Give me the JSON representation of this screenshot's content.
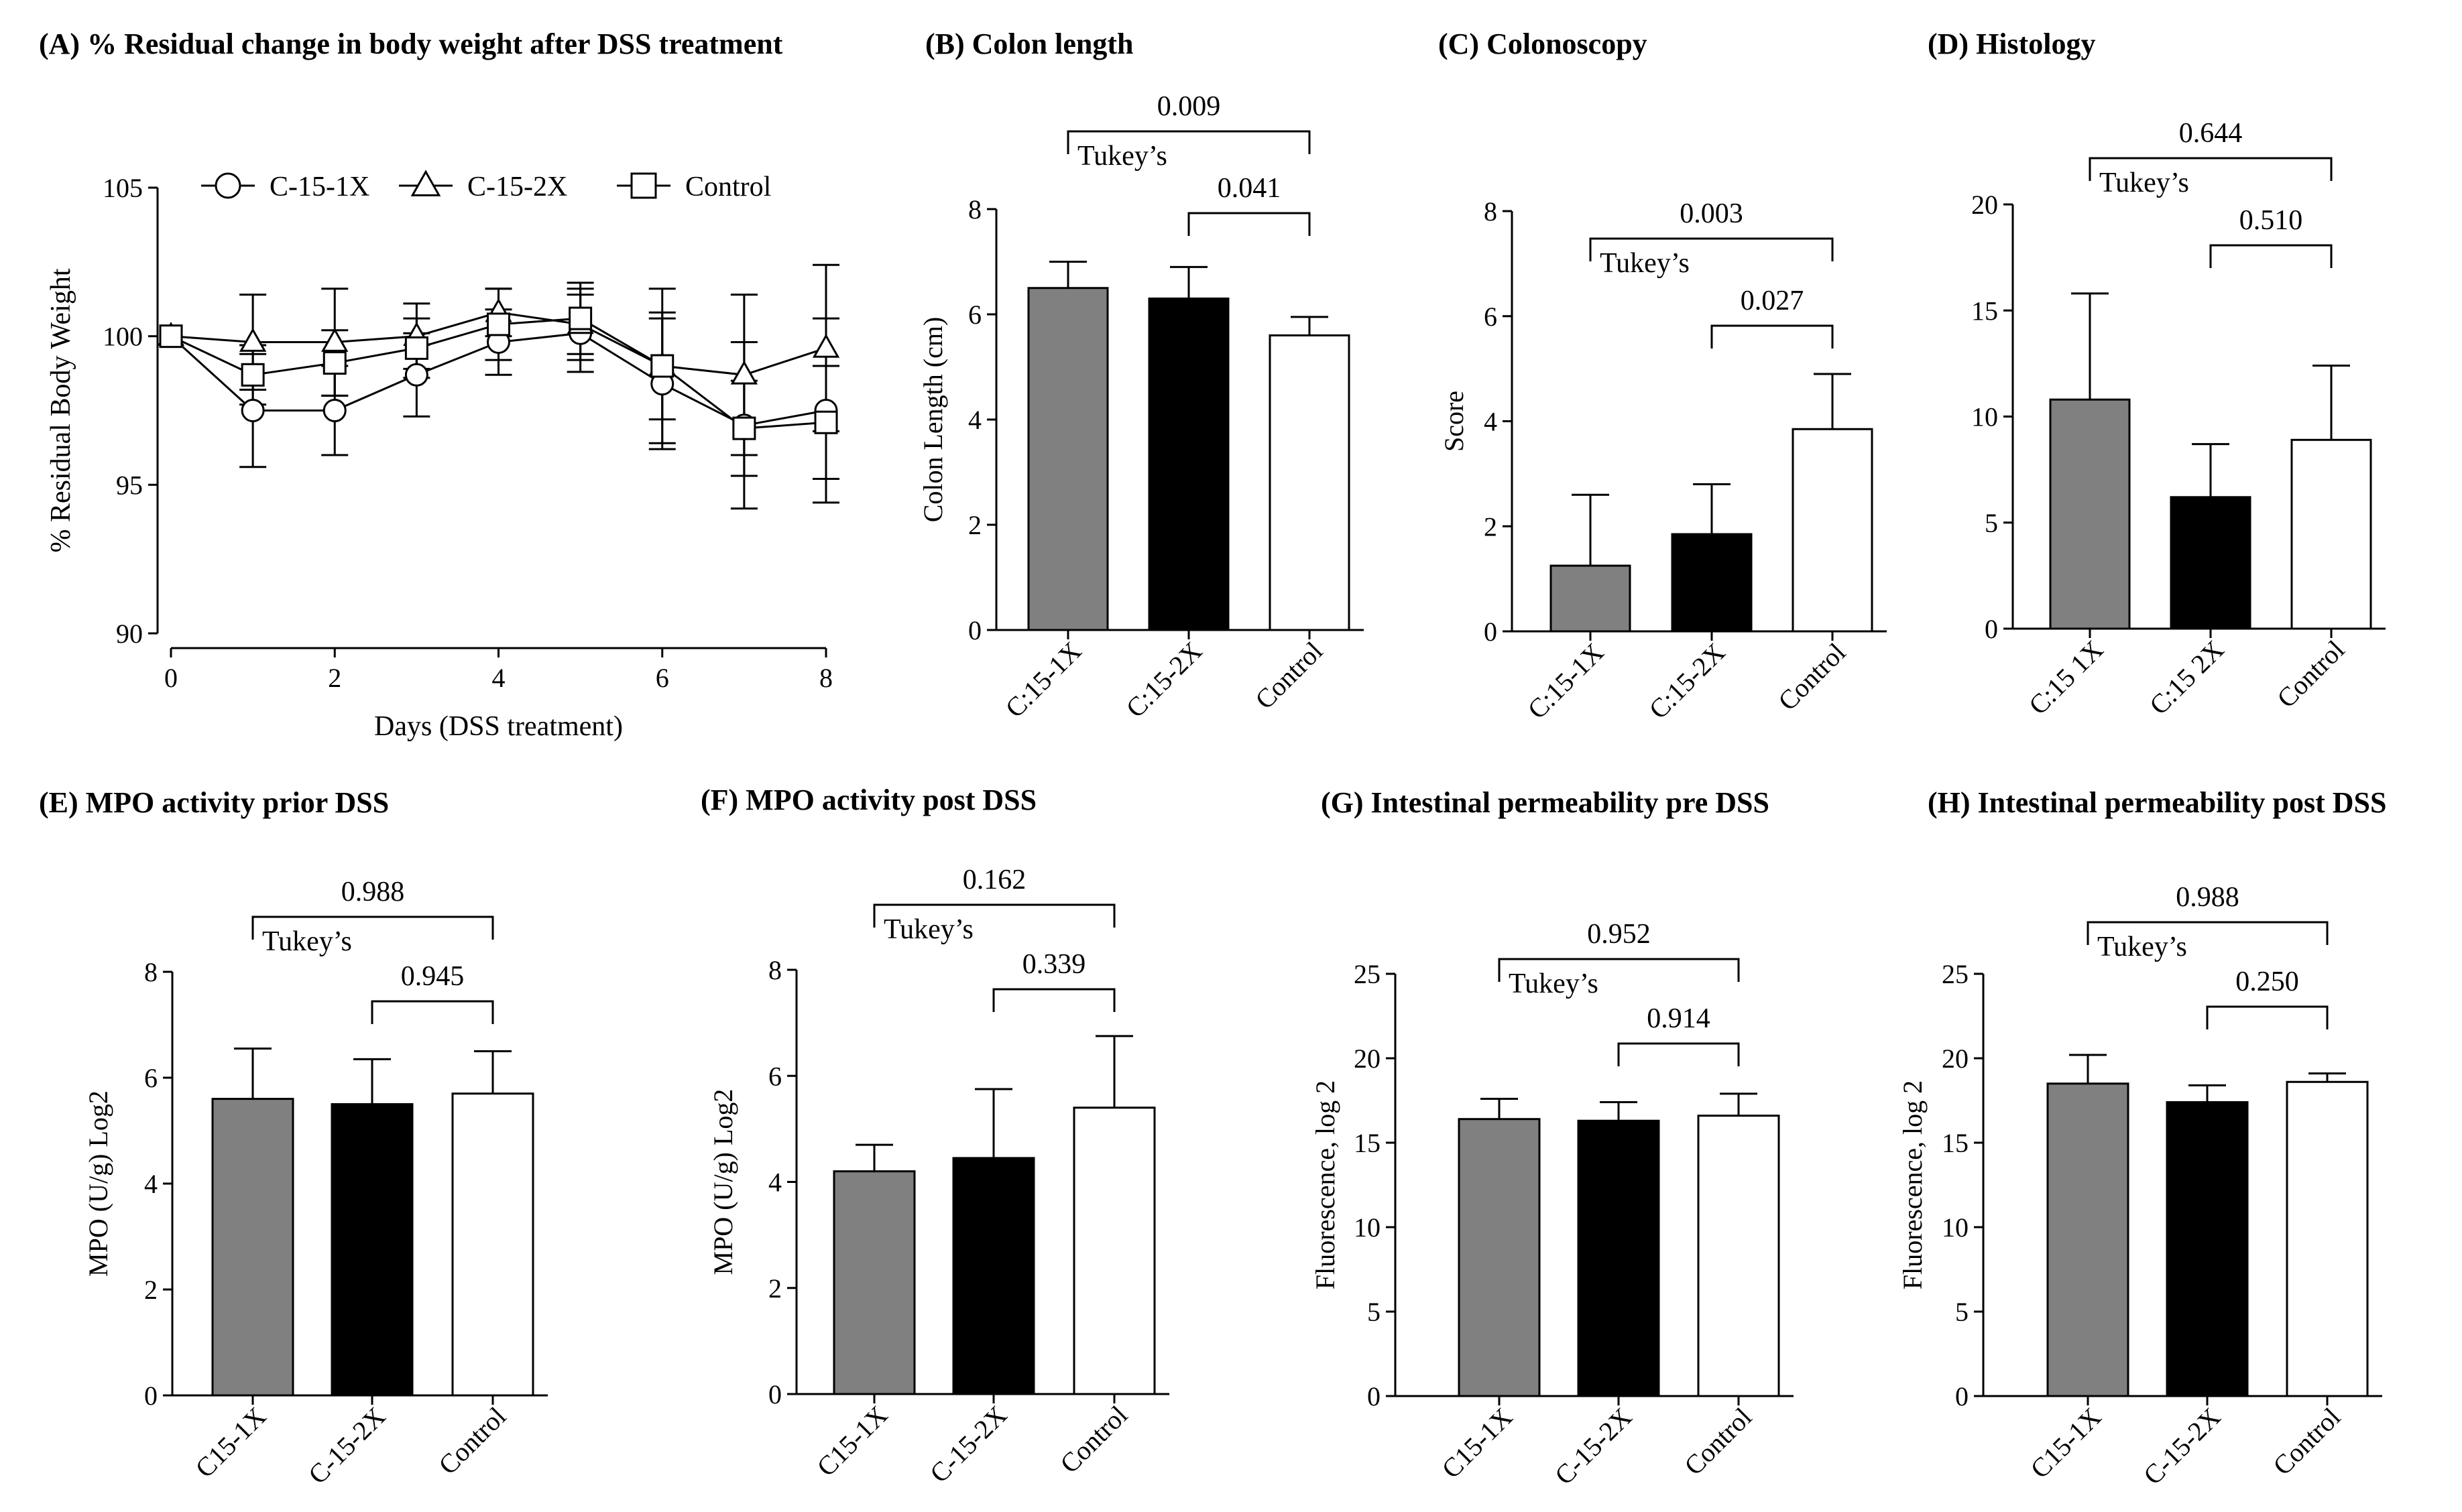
{
  "colors": {
    "c15_1x": "#808080",
    "c15_2x": "#000000",
    "control": "#ffffff",
    "stroke": "#000000"
  },
  "chart_data": [
    {
      "id": "A",
      "type": "line",
      "title": "(A) % Residual change in body weight after DSS treatment",
      "xlabel": "Days (DSS treatment)",
      "ylabel": "% Residual Body Weight",
      "xlim": [
        0,
        8
      ],
      "ylim": [
        90,
        105
      ],
      "xticks": [
        0,
        2,
        4,
        6,
        8
      ],
      "yticks": [
        90,
        95,
        100,
        105
      ],
      "legend_position": "top",
      "series": [
        {
          "name": "C-15-1X",
          "marker": "circle",
          "x": [
            0,
            1,
            2,
            3,
            4,
            5,
            6,
            7,
            8
          ],
          "y": [
            100,
            97.5,
            97.5,
            98.7,
            99.8,
            100.1,
            98.4,
            97.0,
            97.5
          ],
          "err": [
            0,
            1.9,
            1.5,
            1.4,
            1.1,
            1.3,
            2.2,
            2.8,
            3.1
          ]
        },
        {
          "name": "C-15-2X",
          "marker": "triangle",
          "x": [
            0,
            1,
            2,
            3,
            4,
            5,
            6,
            7,
            8
          ],
          "y": [
            100,
            99.8,
            99.8,
            100.0,
            100.8,
            100.4,
            99.0,
            98.7,
            99.6
          ],
          "err": [
            0,
            1.6,
            1.8,
            1.1,
            0.8,
            1.2,
            1.8,
            2.7,
            2.8
          ]
        },
        {
          "name": "Control",
          "marker": "square",
          "x": [
            0,
            1,
            2,
            3,
            4,
            5,
            6,
            7,
            8
          ],
          "y": [
            100,
            98.7,
            99.1,
            99.6,
            100.4,
            100.6,
            99.0,
            96.9,
            97.1
          ],
          "err": [
            0,
            1.0,
            1.1,
            1.0,
            1.2,
            1.2,
            2.6,
            1.6,
            1.9
          ]
        }
      ]
    },
    {
      "id": "B",
      "type": "bar",
      "title": "(B) Colon length",
      "ylabel": "Colon Length (cm)",
      "categories": [
        "C:15-1X",
        "C:15-2X",
        "Control"
      ],
      "values": [
        6.5,
        6.3,
        5.6
      ],
      "err": [
        0.5,
        0.6,
        0.35
      ],
      "ylim": [
        0,
        8
      ],
      "yticks": [
        0,
        2,
        4,
        6,
        8
      ],
      "annotations": {
        "top_p": "0.009",
        "test": "Tukey’s",
        "inner_p": "0.041"
      }
    },
    {
      "id": "C",
      "type": "bar",
      "title": "(C) Colonoscopy",
      "ylabel": "Score",
      "categories": [
        "C:15-1X",
        "C:15-2X",
        "Control"
      ],
      "values": [
        1.25,
        1.85,
        3.85
      ],
      "err": [
        1.35,
        0.95,
        1.05
      ],
      "ylim": [
        0,
        8
      ],
      "yticks": [
        0,
        2,
        4,
        6,
        8
      ],
      "annotations": {
        "top_p": "0.003",
        "test": "Tukey’s",
        "inner_p": "0.027"
      }
    },
    {
      "id": "D",
      "type": "bar",
      "title": "(D) Histology",
      "ylabel": "",
      "categories": [
        "C:15 1X",
        "C:15 2X",
        "Control"
      ],
      "values": [
        10.8,
        6.2,
        8.9
      ],
      "err": [
        5.0,
        2.5,
        3.5
      ],
      "ylim": [
        0,
        20
      ],
      "yticks": [
        0,
        5,
        10,
        15,
        20
      ],
      "annotations": {
        "top_p": "0.644",
        "test": "Tukey’s",
        "inner_p": "0.510"
      }
    },
    {
      "id": "E",
      "type": "bar",
      "title": "(E) MPO activity prior DSS",
      "ylabel": "MPO (U/g) Log2",
      "categories": [
        "C15-1X",
        "C-15-2X",
        "Control"
      ],
      "values": [
        5.6,
        5.5,
        5.7
      ],
      "err": [
        0.95,
        0.85,
        0.8
      ],
      "ylim": [
        0,
        8
      ],
      "yticks": [
        0,
        2,
        4,
        6,
        8
      ],
      "annotations": {
        "top_p": "0.988",
        "test": "Tukey’s",
        "inner_p": "0.945"
      }
    },
    {
      "id": "F",
      "type": "bar",
      "title": "(F) MPO activity post DSS",
      "ylabel": "MPO (U/g) Log2",
      "categories": [
        "C15-1X",
        "C-15-2X",
        "Control"
      ],
      "values": [
        4.2,
        4.45,
        5.4
      ],
      "err": [
        0.5,
        1.3,
        1.35
      ],
      "ylim": [
        0,
        8
      ],
      "yticks": [
        0,
        2,
        4,
        6,
        8
      ],
      "annotations": {
        "top_p": "0.162",
        "test": "Tukey’s",
        "inner_p": "0.339"
      }
    },
    {
      "id": "G",
      "type": "bar",
      "title": "(G) Intestinal permeability pre DSS",
      "ylabel": "Fluorescence, log 2",
      "categories": [
        "C15-1X",
        "C-15-2X",
        "Control"
      ],
      "values": [
        16.4,
        16.3,
        16.6
      ],
      "err": [
        1.2,
        1.1,
        1.3
      ],
      "ylim": [
        0,
        25
      ],
      "yticks": [
        0,
        5,
        10,
        15,
        20,
        25
      ],
      "annotations": {
        "top_p": "0.952",
        "test": "Tukey’s",
        "inner_p": "0.914"
      }
    },
    {
      "id": "H",
      "type": "bar",
      "title": "(H) Intestinal permeability post DSS",
      "ylabel": "Fluorescence, log 2",
      "categories": [
        "C15-1X",
        "C-15-2X",
        "Control"
      ],
      "values": [
        18.5,
        17.4,
        18.6
      ],
      "err": [
        1.7,
        1.0,
        0.5
      ],
      "ylim": [
        0,
        25
      ],
      "yticks": [
        0,
        5,
        10,
        15,
        20,
        25
      ],
      "annotations": {
        "top_p": "0.988",
        "test": "Tukey’s",
        "inner_p": "0.250"
      }
    }
  ]
}
